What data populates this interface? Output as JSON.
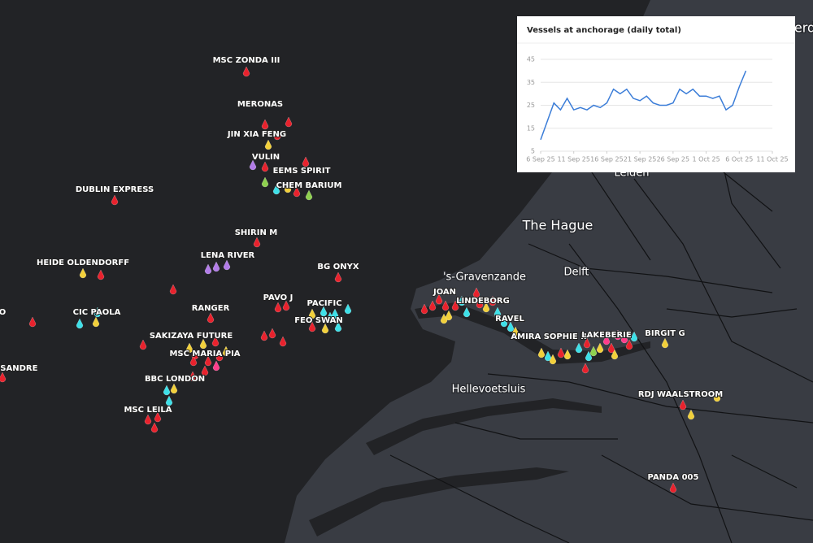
{
  "map": {
    "places": [
      "The Hague",
      "Delft",
      "'s-Gravenzande",
      "Hellevoetsluis",
      "Leiden",
      "erd"
    ],
    "vessels": [
      "MSC ZONDA III",
      "MERONAS",
      "JIN XIA FENG",
      "VULIN",
      "EEMS SPIRIT",
      "CHEM BARIUM",
      "DUBLIN EXPRESS",
      "SHIRIN M",
      "LENA RIVER",
      "HEIDE OLDENDORFF",
      "BG ONYX",
      "PAVO J",
      "PACIFIC",
      "FEO SWAN",
      "RANGER",
      "CIC PAOLA",
      "SAKIZAYA FUTURE",
      "MSC MARIA PIA",
      "BBC LONDON",
      "MSC LEILA",
      "O",
      "SSANDRE",
      "JOAN",
      "LINDEBORG",
      "RAVEL",
      "AMIRA SOPHIE II",
      "LAKEBERIE",
      "BIRGIT G",
      "RDJ WAALSTROOM",
      "PANDA 005"
    ]
  },
  "chart_data": {
    "type": "line",
    "title": "Vessels at anchorage (daily total)",
    "x": [
      "2025-09-06",
      "2025-09-07",
      "2025-09-08",
      "2025-09-09",
      "2025-09-10",
      "2025-09-11",
      "2025-09-12",
      "2025-09-13",
      "2025-09-14",
      "2025-09-15",
      "2025-09-16",
      "2025-09-17",
      "2025-09-18",
      "2025-09-19",
      "2025-09-20",
      "2025-09-21",
      "2025-09-22",
      "2025-09-23",
      "2025-09-24",
      "2025-09-25",
      "2025-09-26",
      "2025-09-27",
      "2025-09-28",
      "2025-09-29",
      "2025-09-30",
      "2025-10-01",
      "2025-10-02",
      "2025-10-03",
      "2025-10-04",
      "2025-10-05",
      "2025-10-06",
      "2025-10-07"
    ],
    "series": [
      {
        "name": "Vessels at anchorage",
        "color": "#3b7dd8",
        "values": [
          10,
          18,
          26,
          23,
          28,
          23,
          24,
          23,
          25,
          24,
          26,
          32,
          30,
          32,
          28,
          27,
          29,
          26,
          25,
          25,
          26,
          32,
          30,
          32,
          29,
          29,
          28,
          29,
          23,
          25,
          33,
          40
        ]
      }
    ],
    "xlim": [
      "2025-09-06",
      "2025-10-11"
    ],
    "xticks": [
      {
        "value": "2025-09-06",
        "label": "6 Sep 25"
      },
      {
        "value": "2025-09-11",
        "label": "11 Sep 25"
      },
      {
        "value": "2025-09-16",
        "label": "16 Sep 25"
      },
      {
        "value": "2025-09-21",
        "label": "21 Sep 25"
      },
      {
        "value": "2025-09-26",
        "label": "26 Sep 25"
      },
      {
        "value": "2025-10-01",
        "label": "1 Oct 25"
      },
      {
        "value": "2025-10-06",
        "label": "6 Oct 25"
      },
      {
        "value": "2025-10-11",
        "label": "11 Oct 25"
      }
    ],
    "ylim": [
      5,
      45
    ],
    "yticks": [
      5,
      15,
      25,
      35,
      45
    ],
    "grid": true
  }
}
